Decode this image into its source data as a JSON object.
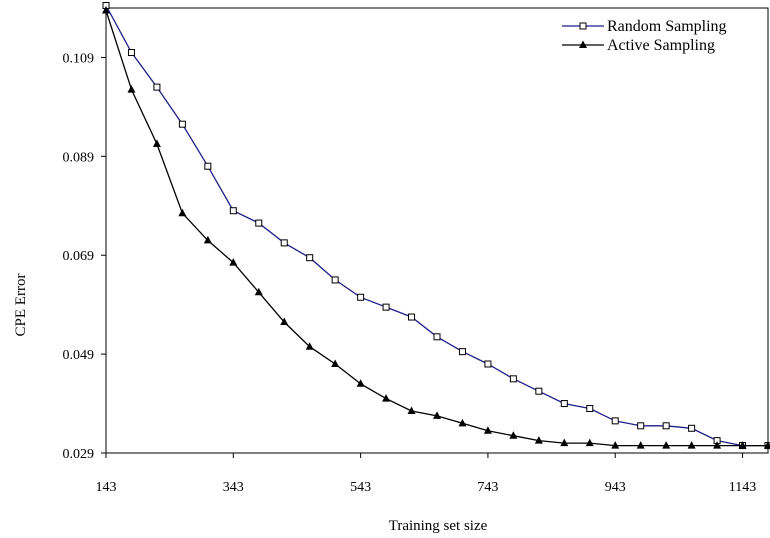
{
  "chart_data": {
    "type": "line",
    "title": "",
    "xlabel": "Training set size",
    "ylabel": "CPE Error",
    "xlim": [
      143,
      1183
    ],
    "ylim": [
      0.029,
      0.119
    ],
    "xticks": [
      143,
      343,
      543,
      743,
      943,
      1143
    ],
    "yticks": [
      0.029,
      0.049,
      0.069,
      0.089,
      0.109
    ],
    "x_tick_labels": [
      "143",
      "343",
      "543",
      "743",
      "943",
      "1143"
    ],
    "y_tick_labels": [
      "0.029",
      "0.049",
      "0.069",
      "0.089",
      "0.109"
    ],
    "grid": false,
    "legend_position": "top-right",
    "x": [
      143,
      183,
      223,
      263,
      303,
      343,
      383,
      423,
      463,
      503,
      543,
      583,
      623,
      663,
      703,
      743,
      783,
      823,
      863,
      903,
      943,
      983,
      1023,
      1063,
      1103,
      1143,
      1183
    ],
    "series": [
      {
        "name": "Random Sampling",
        "color": "#1f1f8a",
        "marker": "open-square",
        "values": [
          0.1195,
          0.11,
          0.103,
          0.0955,
          0.087,
          0.078,
          0.0755,
          0.0715,
          0.0685,
          0.064,
          0.0605,
          0.0585,
          0.0565,
          0.0525,
          0.0495,
          0.047,
          0.044,
          0.0415,
          0.039,
          0.038,
          0.0355,
          0.0345,
          0.0345,
          0.034,
          0.0315,
          0.0305,
          0.0305
        ]
      },
      {
        "name": "Active Sampling",
        "color": "#000000",
        "marker": "filled-triangle",
        "values": [
          0.1185,
          0.1025,
          0.0915,
          0.0775,
          0.072,
          0.0675,
          0.0615,
          0.0555,
          0.0505,
          0.047,
          0.043,
          0.04,
          0.0375,
          0.0365,
          0.035,
          0.0335,
          0.0325,
          0.0315,
          0.031,
          0.031,
          0.0305,
          0.0305,
          0.0305,
          0.0305,
          0.0305,
          0.0305,
          0.0305
        ]
      }
    ]
  }
}
